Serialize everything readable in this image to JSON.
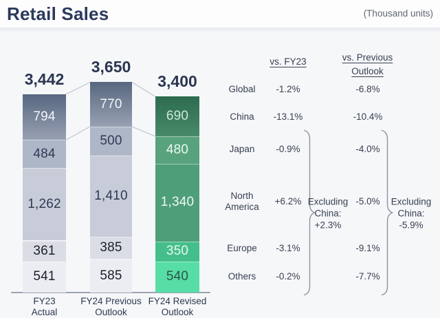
{
  "header": {
    "title": "Retail Sales",
    "units_note": "(Thousand units)"
  },
  "chart_data": {
    "type": "bar",
    "subtype": "stacked-bar",
    "title": "Retail Sales",
    "units": "Thousand units",
    "stack_order_top_to_bottom": [
      "China",
      "Japan",
      "North America",
      "Europe",
      "Others"
    ],
    "bars": [
      {
        "category": "FY23 Actual",
        "axis_lines": [
          "FY23",
          "Actual"
        ],
        "theme": "gray",
        "total_value": 3442,
        "total_label": "3,442",
        "segments": [
          {
            "name": "China",
            "value": 794,
            "label": "794"
          },
          {
            "name": "Japan",
            "value": 484,
            "label": "484"
          },
          {
            "name": "North America",
            "value": 1262,
            "label": "1,262"
          },
          {
            "name": "Europe",
            "value": 361,
            "label": "361"
          },
          {
            "name": "Others",
            "value": 541,
            "label": "541"
          }
        ]
      },
      {
        "category": "FY24 Previous Outlook",
        "axis_lines": [
          "FY24 Previous",
          "Outlook"
        ],
        "theme": "gray",
        "total_value": 3650,
        "total_label": "3,650",
        "segments": [
          {
            "name": "China",
            "value": 770,
            "label": "770"
          },
          {
            "name": "Japan",
            "value": 500,
            "label": "500"
          },
          {
            "name": "North America",
            "value": 1410,
            "label": "1,410"
          },
          {
            "name": "Europe",
            "value": 385,
            "label": "385"
          },
          {
            "name": "Others",
            "value": 585,
            "label": "585"
          }
        ]
      },
      {
        "category": "FY24 Revised Outlook",
        "axis_lines": [
          "FY24 Revised",
          "Outlook"
        ],
        "theme": "green",
        "total_value": 3400,
        "total_label": "3,400",
        "segments": [
          {
            "name": "China",
            "value": 690,
            "label": "690"
          },
          {
            "name": "Japan",
            "value": 480,
            "label": "480"
          },
          {
            "name": "North America",
            "value": 1340,
            "label": "1,340"
          },
          {
            "name": "Europe",
            "value": 350,
            "label": "350"
          },
          {
            "name": "Others",
            "value": 540,
            "label": "540"
          }
        ]
      }
    ]
  },
  "table": {
    "headers": {
      "col1": "vs. FY23",
      "col2": "vs. Previous Outlook"
    },
    "rows": [
      {
        "region": "Global",
        "vs_fy23": "-1.2%",
        "vs_previous": "-6.8%"
      },
      {
        "region": "China",
        "vs_fy23": "-13.1%",
        "vs_previous": "-10.4%"
      },
      {
        "region": "Japan",
        "vs_fy23": "-0.9%",
        "vs_previous": "-4.0%"
      },
      {
        "region": "North America",
        "vs_fy23": "+6.2%",
        "vs_previous": "-5.0%"
      },
      {
        "region": "Europe",
        "vs_fy23": "-3.1%",
        "vs_previous": "-9.1%"
      },
      {
        "region": "Others",
        "vs_fy23": "-0.2%",
        "vs_previous": "-7.7%"
      }
    ],
    "annotations": [
      {
        "column": "vs. FY23",
        "text": "Excluding China: +2.3%",
        "lines": [
          "Excluding",
          "China:",
          "+2.3%"
        ]
      },
      {
        "column": "vs. Previous Outlook",
        "text": "Excluding China: -5.9%",
        "lines": [
          "Excluding",
          "China:",
          "-5.9%"
        ]
      }
    ]
  },
  "colors": {
    "title_text": "#2b3a5c",
    "units_text": "#5f6672",
    "total_label_text": "#2a3550",
    "axis_text": "#2c3850",
    "axis_line": "#9aa3ae",
    "connector_line": "#c0c4cd",
    "table_text": "#364052",
    "brace_stroke": "#8b94a3",
    "gray_china_gradient": [
      "#57677f",
      "#98a1b3"
    ],
    "gray_fills": [
      "#57677f",
      "#aeb7c8",
      "#c7ccd8",
      "#dadde5",
      "#ebedf2"
    ],
    "gray_text": [
      "#f4f6fa",
      "#2e3a55",
      "#2e3a55",
      "#1c2027",
      "#1c2027"
    ],
    "green_china_gradient": [
      "#2d6b50",
      "#478a69"
    ],
    "green_fills": [
      "#2d6b50",
      "#58a37e",
      "#4f9e7a",
      "#44bf8c",
      "#57dda6"
    ],
    "green_text": [
      "#cde9db",
      "#ecf9f2",
      "#ecf9f2",
      "#e8f8f0",
      "#2a5547"
    ]
  }
}
